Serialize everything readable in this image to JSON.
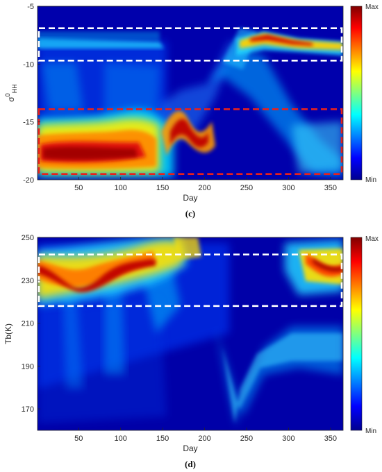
{
  "chart_data": [
    {
      "type": "heatmap",
      "panel_label": "(c)",
      "xlabel": "Day",
      "ylabel_main": "σ",
      "ylabel_sup": "0",
      "ylabel_sub": "HH",
      "xlim": [
        1,
        365
      ],
      "ylim": [
        -20,
        -5
      ],
      "xticks": [
        50,
        100,
        150,
        200,
        250,
        300,
        350
      ],
      "yticks": [
        -20,
        -15,
        -10,
        -5
      ],
      "colorbar": {
        "max_label": "Max",
        "min_label": "Min",
        "colormap": "jet"
      },
      "density_ridges": [
        {
          "name": "upper",
          "points": [
            [
              1,
              -8.0
            ],
            [
              120,
              -8.3
            ],
            [
              200,
              -8.5
            ],
            [
              230,
              -8.2
            ],
            [
              260,
              -7.6
            ],
            [
              300,
              -8.1
            ],
            [
              365,
              -8.4
            ]
          ]
        },
        {
          "name": "lower",
          "points": [
            [
              1,
              -18.3
            ],
            [
              50,
              -18.1
            ],
            [
              100,
              -17.6
            ],
            [
              140,
              -17.0
            ],
            [
              170,
              -16.5
            ],
            [
              200,
              -16.8
            ],
            [
              230,
              -14.5
            ],
            [
              260,
              -12.5
            ],
            [
              300,
              -14.0
            ],
            [
              340,
              -16.0
            ],
            [
              365,
              -16.5
            ]
          ]
        }
      ],
      "highlight_boxes": [
        {
          "color": "#ffffff",
          "x_range": [
            1,
            365
          ],
          "y_range": [
            -9.7,
            -6.9
          ]
        },
        {
          "color": "#e8201c",
          "x_range": [
            1,
            365
          ],
          "y_range": [
            -19.5,
            -13.9
          ]
        }
      ]
    },
    {
      "type": "heatmap",
      "panel_label": "(d)",
      "xlabel": "Day",
      "ylabel": "Tb(K)",
      "xlim": [
        1,
        365
      ],
      "ylim": [
        160,
        250
      ],
      "xticks": [
        50,
        100,
        150,
        200,
        250,
        300,
        350
      ],
      "yticks": [
        170,
        190,
        210,
        230,
        250
      ],
      "colorbar": {
        "max_label": "Max",
        "min_label": "Min",
        "colormap": "jet"
      },
      "density_ridges": [
        {
          "name": "upper",
          "points": [
            [
              1,
              231
            ],
            [
              30,
              229
            ],
            [
              60,
              226
            ],
            [
              90,
              231
            ],
            [
              110,
              233
            ],
            [
              140,
              237
            ],
            [
              170,
              243
            ],
            [
              200,
              236
            ],
            [
              225,
              226
            ],
            [
              237,
              163
            ],
            [
              260,
              190
            ],
            [
              300,
              200
            ],
            [
              320,
              235
            ],
            [
              350,
              234
            ],
            [
              365,
              230
            ]
          ]
        }
      ],
      "highlight_boxes": [
        {
          "color": "#ffffff",
          "x_range": [
            1,
            365
          ],
          "y_range": [
            218,
            242
          ]
        }
      ]
    }
  ]
}
